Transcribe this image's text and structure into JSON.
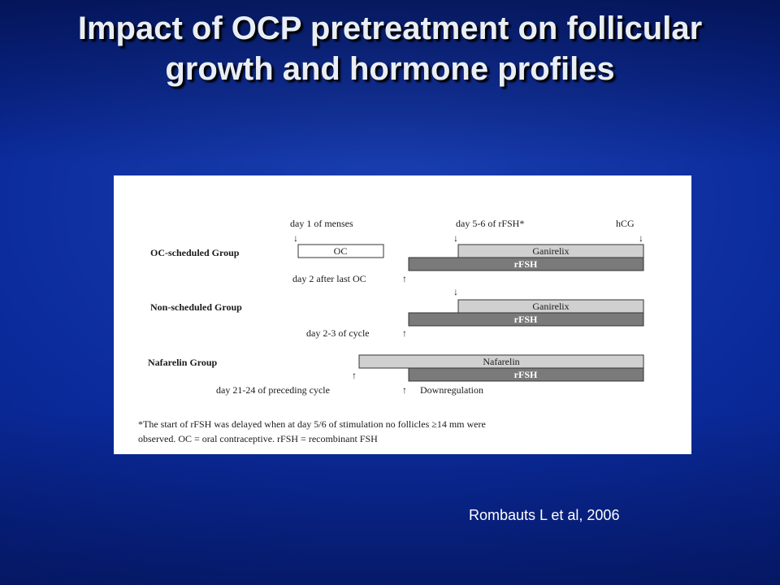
{
  "slide": {
    "title": "Impact of OCP pretreatment on follicular growth and hormone profiles",
    "citation": "Rombauts L et al, 2006"
  },
  "colors": {
    "background": "#0a2a9a",
    "title_text": "#e9eef5",
    "light_bar": "#d0d0d0",
    "dark_bar": "#7a7a7a"
  },
  "diagram": {
    "top_labels": {
      "menses": "day 1 of menses",
      "rfsh_day": "day 5-6 of rFSH*",
      "hcg": "hCG"
    },
    "groups": {
      "oc": {
        "name": "OC-scheduled Group",
        "oc_bar": "OC",
        "ganirelix_bar": "Ganirelix",
        "rfsh_bar": "rFSH",
        "start_label": "day 2 after last OC"
      },
      "non": {
        "name": "Non-scheduled Group",
        "ganirelix_bar": "Ganirelix",
        "rfsh_bar": "rFSH",
        "start_label": "day 2-3 of cycle"
      },
      "naf": {
        "name": "Nafarelin Group",
        "nafarelin_bar": "Nafarelin",
        "rfsh_bar": "rFSH",
        "start_label": "day 21-24 of preceding cycle",
        "downreg_label": "Downregulation"
      }
    },
    "footnote": {
      "line1": "*The start of rFSH was delayed when at day 5/6 of stimulation no follicles ≥14 mm were",
      "line2": "observed. OC = oral contraceptive. rFSH = recombinant FSH"
    },
    "arrows": {
      "down": "↓",
      "up": "↑"
    }
  }
}
